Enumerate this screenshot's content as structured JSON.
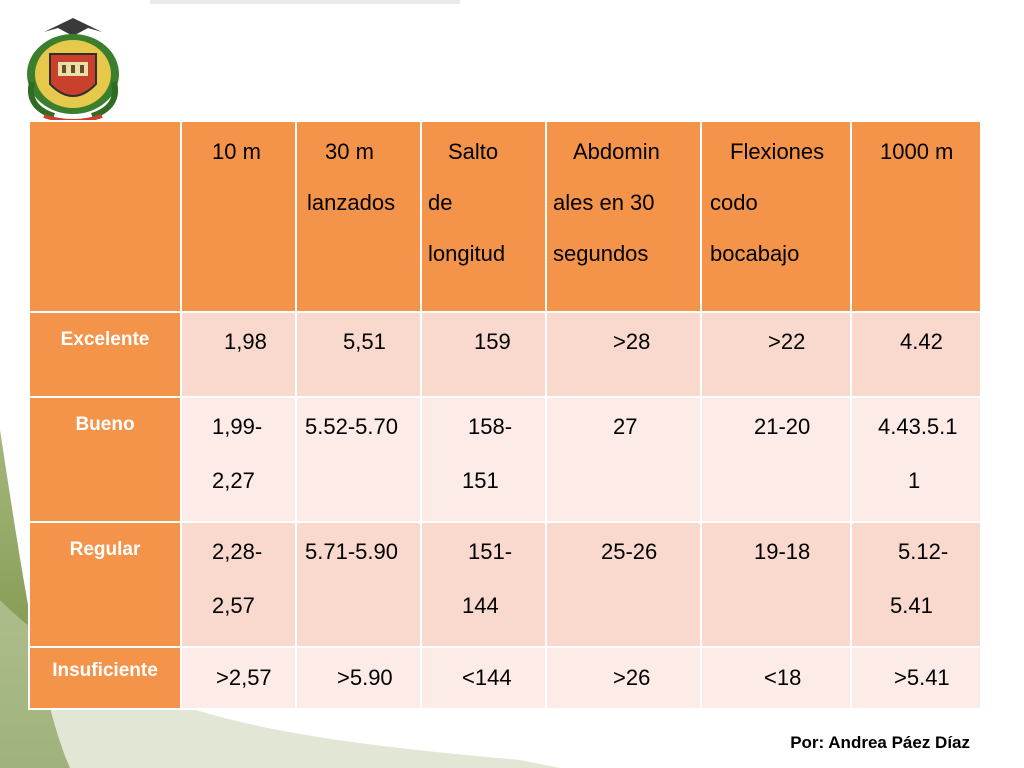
{
  "header": {
    "columns": [
      "",
      "10 m",
      "30 m lanzados",
      "Salto de longitud",
      "Abdominales en 30 segundos",
      "Flexiones codo bocabajo",
      "1000 m"
    ]
  },
  "hdr_lines": {
    "c1": [
      "10 m"
    ],
    "c2": [
      "30 m",
      "lanzados"
    ],
    "c3": [
      "Salto",
      "de",
      "longitud"
    ],
    "c4": [
      "Abdomin",
      "ales en 30",
      "segundos"
    ],
    "c5": [
      "Flexiones",
      "codo",
      "bocabajo"
    ],
    "c6": [
      "1000 m"
    ]
  },
  "rows": [
    {
      "label": "Excelente",
      "cells": [
        [
          "1,98"
        ],
        [
          "5,51"
        ],
        [
          "159"
        ],
        [
          ">28"
        ],
        [
          ">22"
        ],
        [
          "4.42"
        ]
      ]
    },
    {
      "label": "Bueno",
      "cells": [
        [
          "1,99-",
          "2,27"
        ],
        [
          "5.52-5.70"
        ],
        [
          "158-",
          "151"
        ],
        [
          "27"
        ],
        [
          "21-20"
        ],
        [
          "4.43.5.1",
          "1"
        ]
      ]
    },
    {
      "label": "Regular",
      "cells": [
        [
          "2,28-",
          "2,57"
        ],
        [
          "5.71-5.90"
        ],
        [
          "151-",
          "144"
        ],
        [
          "25-26"
        ],
        [
          "19-18"
        ],
        [
          "5.12-",
          "5.41"
        ]
      ]
    },
    {
      "label": "Insuficiente",
      "cells": [
        [
          ">2,57"
        ],
        [
          ">5.90"
        ],
        [
          "<144"
        ],
        [
          ">26"
        ],
        [
          "<18"
        ],
        [
          ">5.41"
        ]
      ]
    }
  ],
  "footer": {
    "credit": "Por: Andrea Páez Díaz"
  },
  "colors": {
    "header_bg": "#f4934a",
    "row_dark": "#f9d9cd",
    "row_light": "#fcebe6",
    "swoosh_green": "#7d9a49"
  },
  "icons": {
    "seal": "coat-of-arms-seal"
  }
}
